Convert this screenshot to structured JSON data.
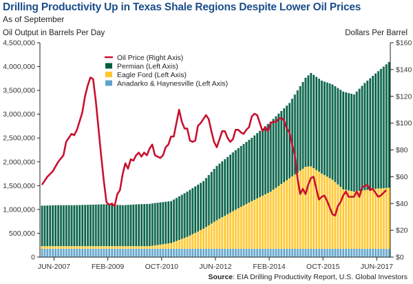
{
  "chart_data": {
    "type": "bar",
    "title": "Drilling Productivity Up in Texas Shale Regions Despite Lower Oil Prices",
    "subtitle": "As of September",
    "ylabel_left": "Oil Output in Barrels Per Day",
    "ylabel_right": "Dollars Per Barrel",
    "source_label": "Source",
    "source_text": ": EIA Drilling Productivity Report, U.S. Global Investors",
    "start_month": "2007-01",
    "x_tick_labels": [
      "JUN-2007",
      "FEB-2009",
      "OCT-2010",
      "JUN-2012",
      "FEB-2014",
      "OCT-2015",
      "JUN-2017"
    ],
    "x_tick_month_index": [
      5,
      25,
      45,
      65,
      85,
      105,
      125
    ],
    "y_left_ticks": [
      "0",
      "500,000",
      "1,000,000",
      "1,500,000",
      "2,000,000",
      "2,500,000",
      "3,000,000",
      "3,500,000",
      "4,000,000",
      "4,500,000"
    ],
    "y_left_range": [
      0,
      4500000
    ],
    "y_right_ticks": [
      "$0",
      "$20",
      "$40",
      "$60",
      "$80",
      "$100",
      "$120",
      "$140",
      "$160"
    ],
    "y_right_range": [
      0,
      160
    ],
    "legend_position": "top-left",
    "legend": [
      {
        "name": "Oil Price (Right Axis)",
        "color": "#c8102e",
        "kind": "line"
      },
      {
        "name": "Permian (Left Axis)",
        "color": "#005e43",
        "kind": "box"
      },
      {
        "name": "Eagle Ford (Left Axis)",
        "color": "#ffc72c",
        "kind": "box"
      },
      {
        "name": "Anadarko & Haynesville (Left Axis)",
        "color": "#5fa3c8",
        "kind": "box"
      }
    ],
    "stack_keypoints_note": "monthly values Jan-2007..Oct-2017",
    "series": [
      {
        "name": "Anadarko & Haynesville (Left Axis)",
        "axis": "left",
        "color": "#5fa3c8",
        "keypoints": [
          [
            0,
            175000
          ],
          [
            129,
            175000
          ]
        ]
      },
      {
        "name": "Eagle Ford (Left Axis)",
        "axis": "left",
        "color": "#ffc72c",
        "keypoints": [
          [
            0,
            55000
          ],
          [
            40,
            55000
          ],
          [
            48,
            120000
          ],
          [
            54,
            250000
          ],
          [
            60,
            420000
          ],
          [
            65,
            600000
          ],
          [
            72,
            820000
          ],
          [
            78,
            1000000
          ],
          [
            85,
            1200000
          ],
          [
            92,
            1480000
          ],
          [
            98,
            1720000
          ],
          [
            100,
            1730000
          ],
          [
            104,
            1580000
          ],
          [
            108,
            1450000
          ],
          [
            112,
            1250000
          ],
          [
            116,
            1200000
          ],
          [
            120,
            1230000
          ],
          [
            124,
            1260000
          ],
          [
            129,
            1280000
          ]
        ]
      },
      {
        "name": "Permian (Left Axis)",
        "axis": "left",
        "color": "#005e43",
        "keypoints": [
          [
            0,
            850000
          ],
          [
            6,
            860000
          ],
          [
            12,
            860000
          ],
          [
            18,
            870000
          ],
          [
            24,
            880000
          ],
          [
            30,
            860000
          ],
          [
            36,
            880000
          ],
          [
            42,
            890000
          ],
          [
            48,
            880000
          ],
          [
            54,
            950000
          ],
          [
            60,
            1000000
          ],
          [
            65,
            1140000
          ],
          [
            72,
            1250000
          ],
          [
            78,
            1330000
          ],
          [
            85,
            1470000
          ],
          [
            92,
            1580000
          ],
          [
            98,
            1870000
          ],
          [
            100,
            1960000
          ],
          [
            104,
            1950000
          ],
          [
            108,
            2000000
          ],
          [
            112,
            2050000
          ],
          [
            116,
            2040000
          ],
          [
            120,
            2250000
          ],
          [
            124,
            2420000
          ],
          [
            129,
            2640000
          ]
        ]
      },
      {
        "name": "Oil Price (Right Axis)",
        "axis": "right",
        "color": "#c8102e",
        "type": "line",
        "keypoints": [
          [
            0,
            54
          ],
          [
            2,
            60
          ],
          [
            4,
            64
          ],
          [
            6,
            71
          ],
          [
            8,
            76
          ],
          [
            9,
            86
          ],
          [
            11,
            92
          ],
          [
            12,
            91
          ],
          [
            13,
            95
          ],
          [
            15,
            108
          ],
          [
            16,
            120
          ],
          [
            17,
            128
          ],
          [
            18,
            134
          ],
          [
            19,
            133
          ],
          [
            20,
            117
          ],
          [
            22,
            76
          ],
          [
            23,
            57
          ],
          [
            24,
            41
          ],
          [
            25,
            39
          ],
          [
            26,
            40
          ],
          [
            27,
            38
          ],
          [
            28,
            47
          ],
          [
            29,
            50
          ],
          [
            30,
            62
          ],
          [
            31,
            70
          ],
          [
            32,
            66
          ],
          [
            33,
            73
          ],
          [
            34,
            72
          ],
          [
            35,
            76
          ],
          [
            36,
            78
          ],
          [
            37,
            75
          ],
          [
            38,
            78
          ],
          [
            39,
            76
          ],
          [
            40,
            81
          ],
          [
            41,
            84
          ],
          [
            42,
            76
          ],
          [
            43,
            75
          ],
          [
            44,
            74
          ],
          [
            45,
            76
          ],
          [
            46,
            82
          ],
          [
            47,
            84
          ],
          [
            48,
            90
          ],
          [
            49,
            90
          ],
          [
            51,
            110
          ],
          [
            52,
            101
          ],
          [
            53,
            96
          ],
          [
            54,
            96
          ],
          [
            55,
            87
          ],
          [
            56,
            86
          ],
          [
            57,
            87
          ],
          [
            58,
            98
          ],
          [
            59,
            100
          ],
          [
            60,
            103
          ],
          [
            61,
            106
          ],
          [
            62,
            103
          ],
          [
            63,
            94
          ],
          [
            64,
            86
          ],
          [
            65,
            82
          ],
          [
            66,
            88
          ],
          [
            67,
            94
          ],
          [
            68,
            94
          ],
          [
            69,
            89
          ],
          [
            70,
            86
          ],
          [
            71,
            88
          ],
          [
            72,
            95
          ],
          [
            73,
            95
          ],
          [
            74,
            93
          ],
          [
            75,
            92
          ],
          [
            76,
            95
          ],
          [
            77,
            97
          ],
          [
            78,
            105
          ],
          [
            79,
            107
          ],
          [
            80,
            106
          ],
          [
            81,
            100
          ],
          [
            82,
            94
          ],
          [
            83,
            97
          ],
          [
            84,
            94
          ],
          [
            85,
            100
          ],
          [
            86,
            101
          ],
          [
            87,
            101
          ],
          [
            88,
            103
          ],
          [
            89,
            104
          ],
          [
            90,
            102
          ],
          [
            91,
            96
          ],
          [
            92,
            93
          ],
          [
            93,
            84
          ],
          [
            94,
            76
          ],
          [
            95,
            59
          ],
          [
            96,
            47
          ],
          [
            97,
            51
          ],
          [
            98,
            47
          ],
          [
            99,
            54
          ],
          [
            100,
            59
          ],
          [
            101,
            60
          ],
          [
            102,
            51
          ],
          [
            103,
            43
          ],
          [
            104,
            45
          ],
          [
            105,
            46
          ],
          [
            106,
            42
          ],
          [
            107,
            37
          ],
          [
            108,
            32
          ],
          [
            109,
            31
          ],
          [
            110,
            38
          ],
          [
            111,
            41
          ],
          [
            112,
            46
          ],
          [
            113,
            49
          ],
          [
            114,
            45
          ],
          [
            115,
            45
          ],
          [
            116,
            45
          ],
          [
            117,
            49
          ],
          [
            118,
            45
          ],
          [
            119,
            52
          ],
          [
            120,
            53
          ],
          [
            121,
            54
          ],
          [
            122,
            50
          ],
          [
            123,
            51
          ],
          [
            124,
            48
          ],
          [
            125,
            45
          ],
          [
            126,
            46
          ],
          [
            127,
            48
          ],
          [
            128,
            50
          ]
        ]
      }
    ]
  }
}
